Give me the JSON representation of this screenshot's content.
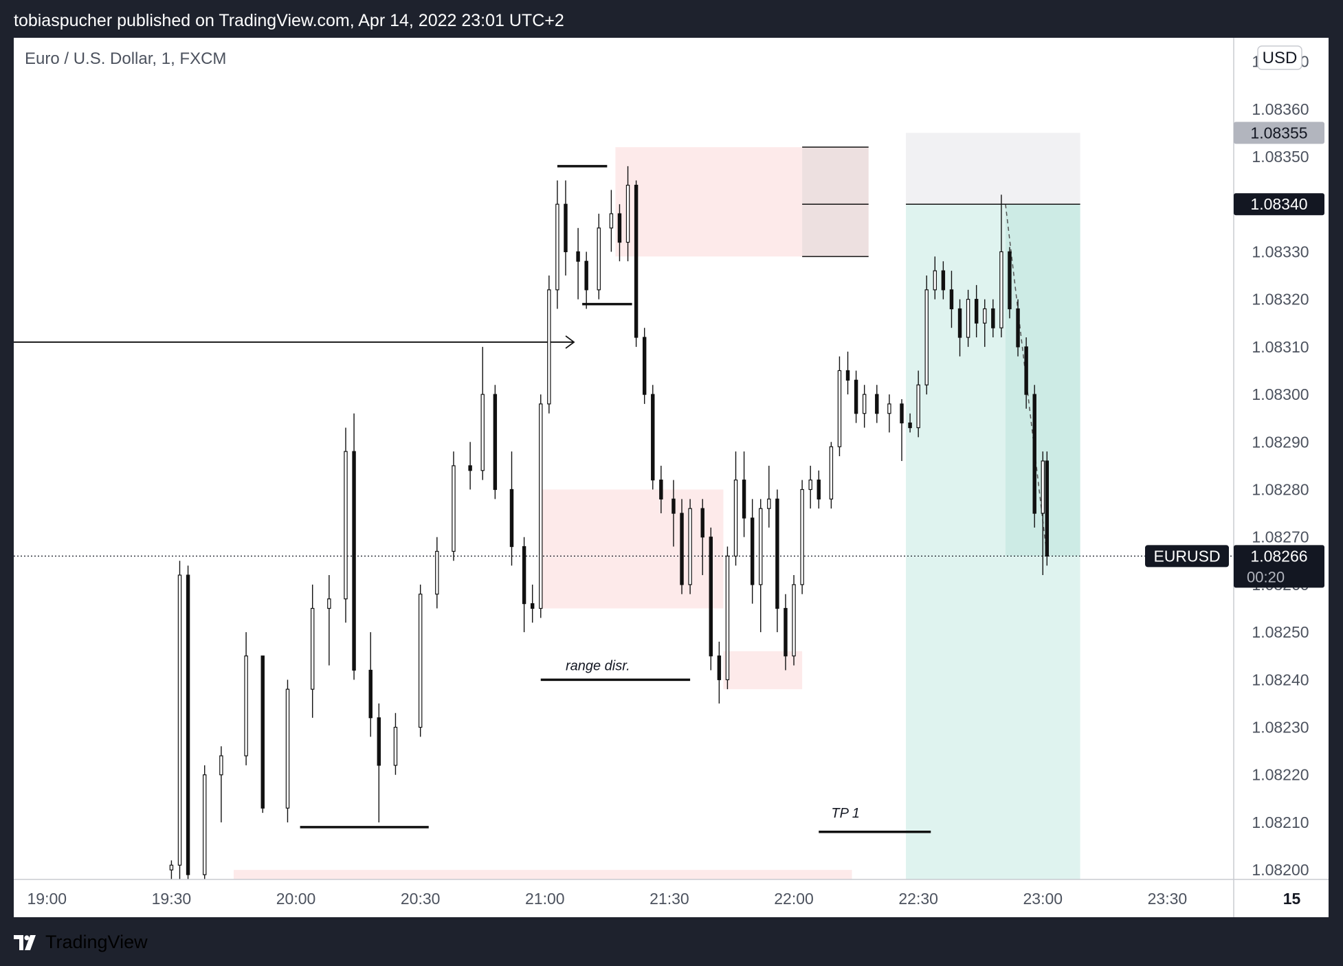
{
  "header": {
    "publish_line": "tobiaspucher published on TradingView.com, Apr 14, 2022 23:01 UTC+2"
  },
  "footer": {
    "brand": "TradingView"
  },
  "chart_data": {
    "type": "candlestick",
    "title": "Euro / U.S. Dollar, 1, FXCM",
    "currency": "USD",
    "symbol": "EURUSD",
    "last_price": "1.08266",
    "countdown": "00:20",
    "price_axis": {
      "range": [
        1.08198,
        1.08375
      ],
      "ticks": [
        "1.08370",
        "1.08360",
        "1.08350",
        "1.08340",
        "1.08330",
        "1.08320",
        "1.08310",
        "1.08300",
        "1.08290",
        "1.08280",
        "1.08270",
        "1.08260",
        "1.08250",
        "1.08240",
        "1.08230",
        "1.08220",
        "1.08210",
        "1.08200"
      ]
    },
    "time_axis": {
      "range": [
        "18:52",
        "23:46"
      ],
      "ticks": [
        "19:00",
        "19:30",
        "20:00",
        "20:30",
        "21:00",
        "21:30",
        "22:00",
        "22:30",
        "23:00",
        "23:30",
        "15"
      ]
    },
    "price_labels": [
      {
        "value": "1.08355",
        "style": "gray"
      },
      {
        "value": "1.08340",
        "style": "dark"
      }
    ],
    "grid": false,
    "colors": {
      "zone_fill": "#fdeaea",
      "zone_dark_fill": "#ede0e0",
      "profit_fill": "#dff3ef",
      "profit_dark_fill": "#cdebe5",
      "stop_fill": "#f1f1f3",
      "label_dark": "#131722",
      "label_gray": "#b2b5be"
    },
    "candles_sampled": [
      {
        "t": "19:30",
        "o": 1.082,
        "h": 1.08202,
        "l": 1.08198,
        "c": 1.08201
      },
      {
        "t": "19:32",
        "o": 1.08201,
        "h": 1.08265,
        "l": 1.08198,
        "c": 1.08262
      },
      {
        "t": "19:34",
        "o": 1.08262,
        "h": 1.08264,
        "l": 1.08198,
        "c": 1.08199
      },
      {
        "t": "19:38",
        "o": 1.08199,
        "h": 1.08222,
        "l": 1.08198,
        "c": 1.0822
      },
      {
        "t": "19:42",
        "o": 1.0822,
        "h": 1.08226,
        "l": 1.0821,
        "c": 1.08224
      },
      {
        "t": "19:48",
        "o": 1.08224,
        "h": 1.0825,
        "l": 1.08222,
        "c": 1.08245
      },
      {
        "t": "19:52",
        "o": 1.08245,
        "h": 1.0824,
        "l": 1.08212,
        "c": 1.08213
      },
      {
        "t": "19:58",
        "o": 1.08213,
        "h": 1.0824,
        "l": 1.0821,
        "c": 1.08238
      },
      {
        "t": "20:04",
        "o": 1.08238,
        "h": 1.0826,
        "l": 1.08232,
        "c": 1.08255
      },
      {
        "t": "20:08",
        "o": 1.08255,
        "h": 1.08262,
        "l": 1.08243,
        "c": 1.08257
      },
      {
        "t": "20:12",
        "o": 1.08257,
        "h": 1.08293,
        "l": 1.08252,
        "c": 1.08288
      },
      {
        "t": "20:14",
        "o": 1.08288,
        "h": 1.08296,
        "l": 1.0824,
        "c": 1.08242
      },
      {
        "t": "20:18",
        "o": 1.08242,
        "h": 1.0825,
        "l": 1.08228,
        "c": 1.08232
      },
      {
        "t": "20:20",
        "o": 1.08232,
        "h": 1.08235,
        "l": 1.0821,
        "c": 1.08222
      },
      {
        "t": "20:24",
        "o": 1.08222,
        "h": 1.08233,
        "l": 1.0822,
        "c": 1.0823
      },
      {
        "t": "20:30",
        "o": 1.0823,
        "h": 1.0826,
        "l": 1.08228,
        "c": 1.08258
      },
      {
        "t": "20:34",
        "o": 1.08258,
        "h": 1.0827,
        "l": 1.08255,
        "c": 1.08267
      },
      {
        "t": "20:38",
        "o": 1.08267,
        "h": 1.08288,
        "l": 1.08265,
        "c": 1.08285
      },
      {
        "t": "20:42",
        "o": 1.08285,
        "h": 1.0829,
        "l": 1.0828,
        "c": 1.08284
      },
      {
        "t": "20:45",
        "o": 1.08284,
        "h": 1.0831,
        "l": 1.08282,
        "c": 1.083
      },
      {
        "t": "20:48",
        "o": 1.083,
        "h": 1.08302,
        "l": 1.08278,
        "c": 1.0828
      },
      {
        "t": "20:52",
        "o": 1.0828,
        "h": 1.08288,
        "l": 1.08264,
        "c": 1.08268
      },
      {
        "t": "20:55",
        "o": 1.08268,
        "h": 1.0827,
        "l": 1.0825,
        "c": 1.08256
      },
      {
        "t": "20:57",
        "o": 1.08256,
        "h": 1.0826,
        "l": 1.08252,
        "c": 1.08255
      },
      {
        "t": "20:59",
        "o": 1.08255,
        "h": 1.083,
        "l": 1.08253,
        "c": 1.08298
      },
      {
        "t": "21:01",
        "o": 1.08298,
        "h": 1.08325,
        "l": 1.08296,
        "c": 1.08322
      },
      {
        "t": "21:03",
        "o": 1.08322,
        "h": 1.08345,
        "l": 1.08318,
        "c": 1.0834
      },
      {
        "t": "21:05",
        "o": 1.0834,
        "h": 1.08345,
        "l": 1.08325,
        "c": 1.0833
      },
      {
        "t": "21:08",
        "o": 1.0833,
        "h": 1.08335,
        "l": 1.0832,
        "c": 1.08328
      },
      {
        "t": "21:10",
        "o": 1.08328,
        "h": 1.0833,
        "l": 1.08318,
        "c": 1.08322
      },
      {
        "t": "21:13",
        "o": 1.08322,
        "h": 1.08338,
        "l": 1.0832,
        "c": 1.08335
      },
      {
        "t": "21:16",
        "o": 1.08335,
        "h": 1.08343,
        "l": 1.0833,
        "c": 1.08338
      },
      {
        "t": "21:18",
        "o": 1.08338,
        "h": 1.0834,
        "l": 1.08328,
        "c": 1.08332
      },
      {
        "t": "21:20",
        "o": 1.08332,
        "h": 1.08348,
        "l": 1.08328,
        "c": 1.08344
      },
      {
        "t": "21:22",
        "o": 1.08344,
        "h": 1.08345,
        "l": 1.0831,
        "c": 1.08312
      },
      {
        "t": "21:24",
        "o": 1.08312,
        "h": 1.08314,
        "l": 1.08298,
        "c": 1.083
      },
      {
        "t": "21:26",
        "o": 1.083,
        "h": 1.08302,
        "l": 1.0828,
        "c": 1.08282
      },
      {
        "t": "21:28",
        "o": 1.08282,
        "h": 1.08285,
        "l": 1.08275,
        "c": 1.08278
      },
      {
        "t": "21:31",
        "o": 1.08278,
        "h": 1.08282,
        "l": 1.08268,
        "c": 1.08275
      },
      {
        "t": "21:33",
        "o": 1.08275,
        "h": 1.08278,
        "l": 1.08258,
        "c": 1.0826
      },
      {
        "t": "21:35",
        "o": 1.0826,
        "h": 1.08278,
        "l": 1.08258,
        "c": 1.08276
      },
      {
        "t": "21:38",
        "o": 1.08276,
        "h": 1.08278,
        "l": 1.08262,
        "c": 1.0827
      },
      {
        "t": "21:40",
        "o": 1.0827,
        "h": 1.08272,
        "l": 1.08242,
        "c": 1.08245
      },
      {
        "t": "21:42",
        "o": 1.08245,
        "h": 1.08248,
        "l": 1.08235,
        "c": 1.0824
      },
      {
        "t": "21:44",
        "o": 1.0824,
        "h": 1.08268,
        "l": 1.08238,
        "c": 1.08266
      },
      {
        "t": "21:46",
        "o": 1.08266,
        "h": 1.08288,
        "l": 1.08264,
        "c": 1.08282
      },
      {
        "t": "21:48",
        "o": 1.08282,
        "h": 1.08288,
        "l": 1.0827,
        "c": 1.08274
      },
      {
        "t": "21:50",
        "o": 1.08274,
        "h": 1.08278,
        "l": 1.08256,
        "c": 1.0826
      },
      {
        "t": "21:52",
        "o": 1.0826,
        "h": 1.08278,
        "l": 1.0825,
        "c": 1.08276
      },
      {
        "t": "21:54",
        "o": 1.08276,
        "h": 1.08285,
        "l": 1.08272,
        "c": 1.08278
      },
      {
        "t": "21:56",
        "o": 1.08278,
        "h": 1.0828,
        "l": 1.0825,
        "c": 1.08255
      },
      {
        "t": "21:58",
        "o": 1.08255,
        "h": 1.08258,
        "l": 1.08242,
        "c": 1.08245
      },
      {
        "t": "22:00",
        "o": 1.08245,
        "h": 1.08262,
        "l": 1.08243,
        "c": 1.0826
      },
      {
        "t": "22:02",
        "o": 1.0826,
        "h": 1.08282,
        "l": 1.08258,
        "c": 1.0828
      },
      {
        "t": "22:04",
        "o": 1.0828,
        "h": 1.08285,
        "l": 1.08276,
        "c": 1.08282
      },
      {
        "t": "22:06",
        "o": 1.08282,
        "h": 1.08284,
        "l": 1.08276,
        "c": 1.08278
      },
      {
        "t": "22:09",
        "o": 1.08278,
        "h": 1.0829,
        "l": 1.08276,
        "c": 1.08289
      },
      {
        "t": "22:11",
        "o": 1.08289,
        "h": 1.08308,
        "l": 1.08287,
        "c": 1.08305
      },
      {
        "t": "22:13",
        "o": 1.08305,
        "h": 1.08309,
        "l": 1.083,
        "c": 1.08303
      },
      {
        "t": "22:15",
        "o": 1.08303,
        "h": 1.08305,
        "l": 1.08294,
        "c": 1.08296
      },
      {
        "t": "22:17",
        "o": 1.08296,
        "h": 1.08302,
        "l": 1.08293,
        "c": 1.083
      },
      {
        "t": "22:20",
        "o": 1.083,
        "h": 1.08302,
        "l": 1.08294,
        "c": 1.08296
      },
      {
        "t": "22:23",
        "o": 1.08296,
        "h": 1.083,
        "l": 1.08292,
        "c": 1.08298
      },
      {
        "t": "22:26",
        "o": 1.08298,
        "h": 1.08299,
        "l": 1.08286,
        "c": 1.08294
      },
      {
        "t": "22:28",
        "o": 1.08294,
        "h": 1.08296,
        "l": 1.08292,
        "c": 1.08293
      },
      {
        "t": "22:30",
        "o": 1.08293,
        "h": 1.08305,
        "l": 1.08291,
        "c": 1.08302
      },
      {
        "t": "22:32",
        "o": 1.08302,
        "h": 1.08325,
        "l": 1.083,
        "c": 1.08322
      },
      {
        "t": "22:34",
        "o": 1.08322,
        "h": 1.08329,
        "l": 1.0832,
        "c": 1.08326
      },
      {
        "t": "22:36",
        "o": 1.08326,
        "h": 1.08328,
        "l": 1.0832,
        "c": 1.08322
      },
      {
        "t": "22:38",
        "o": 1.08322,
        "h": 1.08326,
        "l": 1.08314,
        "c": 1.08318
      },
      {
        "t": "22:40",
        "o": 1.08318,
        "h": 1.0832,
        "l": 1.08308,
        "c": 1.08312
      },
      {
        "t": "22:42",
        "o": 1.08312,
        "h": 1.08322,
        "l": 1.0831,
        "c": 1.0832
      },
      {
        "t": "22:44",
        "o": 1.0832,
        "h": 1.08323,
        "l": 1.08312,
        "c": 1.08315
      },
      {
        "t": "22:46",
        "o": 1.08315,
        "h": 1.0832,
        "l": 1.0831,
        "c": 1.08318
      },
      {
        "t": "22:48",
        "o": 1.08318,
        "h": 1.0832,
        "l": 1.08312,
        "c": 1.08314
      },
      {
        "t": "22:50",
        "o": 1.08314,
        "h": 1.08342,
        "l": 1.08312,
        "c": 1.0833
      },
      {
        "t": "22:52",
        "o": 1.0833,
        "h": 1.08331,
        "l": 1.08316,
        "c": 1.08318
      },
      {
        "t": "22:54",
        "o": 1.08318,
        "h": 1.0832,
        "l": 1.08308,
        "c": 1.0831
      },
      {
        "t": "22:56",
        "o": 1.0831,
        "h": 1.08312,
        "l": 1.08297,
        "c": 1.083
      },
      {
        "t": "22:58",
        "o": 1.083,
        "h": 1.08302,
        "l": 1.08272,
        "c": 1.08275
      },
      {
        "t": "23:00",
        "o": 1.08275,
        "h": 1.08288,
        "l": 1.08262,
        "c": 1.08286
      },
      {
        "t": "23:01",
        "o": 1.08286,
        "h": 1.08288,
        "l": 1.08264,
        "c": 1.08266
      }
    ],
    "zones": [
      {
        "id": "supply-top",
        "t1": "21:17",
        "t2": "22:02",
        "p1": 1.08329,
        "p2": 1.08352,
        "style": "pink"
      },
      {
        "id": "supply-top-ext",
        "t1": "22:02",
        "t2": "22:18",
        "p1": 1.08329,
        "p2": 1.08352,
        "style": "pink-dark"
      },
      {
        "id": "mid-zone",
        "t1": "20:59",
        "t2": "21:43",
        "p1": 1.08255,
        "p2": 1.0828,
        "style": "pink"
      },
      {
        "id": "low-zone",
        "t1": "21:43",
        "t2": "22:02",
        "p1": 1.08238,
        "p2": 1.08246,
        "style": "pink"
      },
      {
        "id": "bottom-strip",
        "t1": "19:45",
        "t2": "22:14",
        "p1": 1.08198,
        "p2": 1.082,
        "style": "pink"
      }
    ],
    "position": {
      "type": "short",
      "entry": 1.0834,
      "stop": 1.08355,
      "target": 1.08198,
      "t1": "22:27",
      "t2": "23:09",
      "current": 1.08266,
      "active_from": "22:51"
    },
    "lines": [
      {
        "t1": "18:52",
        "t2": "21:07",
        "p": 1.08311,
        "arrow": "right"
      },
      {
        "t1": "21:03",
        "t2": "21:15",
        "p": 1.08348
      },
      {
        "t1": "21:09",
        "t2": "21:21",
        "p": 1.08319
      },
      {
        "t1": "22:02",
        "t2": "22:18",
        "p": 1.08352
      },
      {
        "t1": "22:02",
        "t2": "22:18",
        "p": 1.0834
      },
      {
        "t1": "22:02",
        "t2": "22:18",
        "p": 1.08329
      },
      {
        "t1": "22:27",
        "t2": "23:09",
        "p": 1.0834
      },
      {
        "t1": "20:59",
        "t2": "21:35",
        "p": 1.0824
      },
      {
        "t1": "20:01",
        "t2": "20:32",
        "p": 1.08209
      },
      {
        "t1": "22:06",
        "t2": "22:33",
        "p": 1.08208
      }
    ],
    "annotations": [
      {
        "text": "range disr.",
        "t": "21:05",
        "p": 1.08242
      },
      {
        "text": "TP 1",
        "t": "22:09",
        "p": 1.08211
      }
    ]
  }
}
